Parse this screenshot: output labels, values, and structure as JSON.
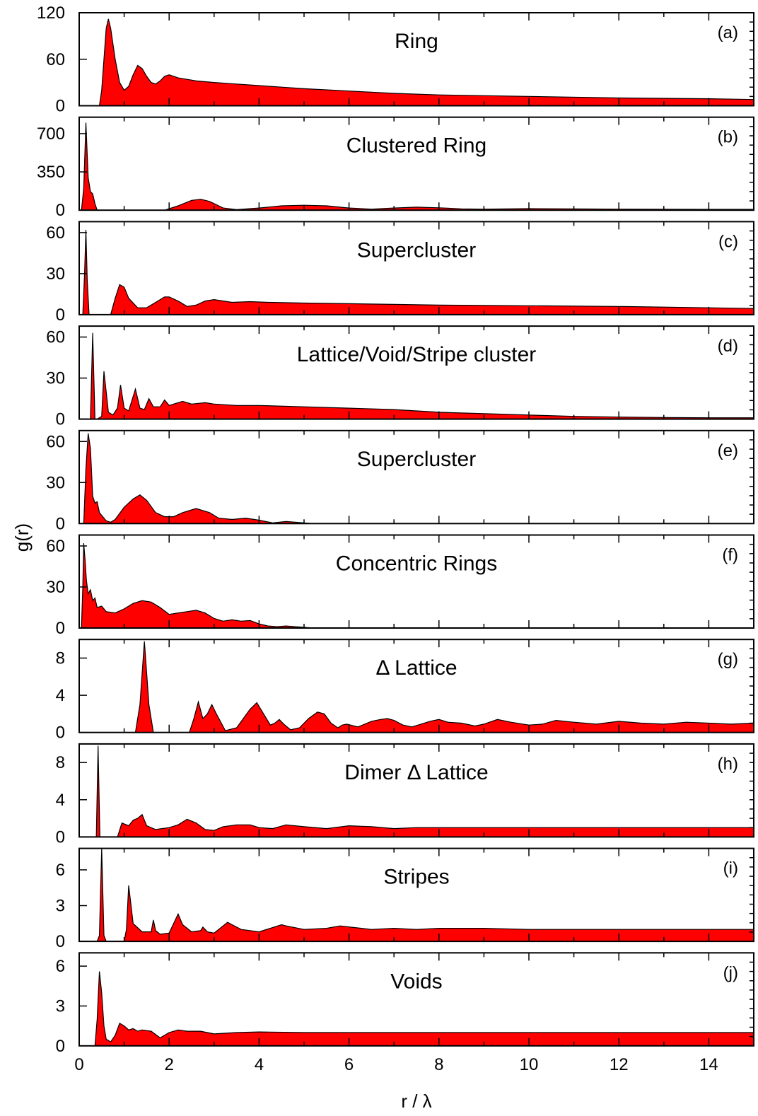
{
  "figure": {
    "xlabel": "r / λ",
    "ylabel": "g(r)",
    "fill_color": "#ff0000",
    "line_color": "#000000"
  },
  "chart_data": [
    {
      "type": "area",
      "tag": "(a)",
      "title": "Ring",
      "xlim": [
        0,
        15
      ],
      "ylim": [
        0,
        120
      ],
      "xticks": [
        0,
        2,
        4,
        6,
        8,
        10,
        12,
        14
      ],
      "yticks": [
        0,
        60,
        120
      ],
      "x": [
        0.45,
        0.5,
        0.55,
        0.6,
        0.65,
        0.7,
        0.8,
        0.9,
        1.0,
        1.1,
        1.2,
        1.3,
        1.4,
        1.5,
        1.6,
        1.7,
        1.8,
        1.9,
        2.0,
        2.2,
        2.4,
        2.6,
        2.8,
        3.0,
        3.5,
        4.0,
        4.5,
        5.0,
        6.0,
        7.0,
        8.0,
        10.0,
        12.0,
        14.0,
        15.0
      ],
      "y": [
        0,
        20,
        60,
        100,
        112,
        100,
        60,
        30,
        20,
        25,
        40,
        52,
        48,
        38,
        30,
        28,
        32,
        38,
        40,
        36,
        34,
        32,
        31,
        30,
        28,
        26,
        24,
        22,
        19,
        16,
        14,
        12,
        10,
        9,
        8
      ]
    },
    {
      "type": "area",
      "tag": "(b)",
      "title": "Clustered Ring",
      "xlim": [
        0,
        15
      ],
      "ylim": [
        0,
        850
      ],
      "xticks": [
        0,
        2,
        4,
        6,
        8,
        10,
        12,
        14
      ],
      "yticks": [
        0,
        350,
        700
      ],
      "x": [
        0.05,
        0.1,
        0.15,
        0.2,
        0.25,
        0.3,
        0.35,
        0.4,
        1.9,
        2.2,
        2.5,
        2.7,
        2.9,
        3.2,
        3.5,
        4.0,
        4.5,
        5.0,
        5.5,
        6.0,
        6.5,
        7.0,
        7.5,
        8.0,
        8.5,
        9.0,
        10.0,
        11.0,
        12.0,
        13.0,
        14.0,
        15.0
      ],
      "y": [
        0,
        200,
        800,
        300,
        170,
        150,
        60,
        0,
        0,
        40,
        90,
        100,
        80,
        20,
        5,
        20,
        40,
        45,
        40,
        20,
        10,
        20,
        28,
        22,
        12,
        10,
        14,
        12,
        10,
        9,
        8,
        8
      ]
    },
    {
      "type": "area",
      "tag": "(c)",
      "title": "Supercluster",
      "xlim": [
        0,
        15
      ],
      "ylim": [
        0,
        68
      ],
      "xticks": [
        0,
        2,
        4,
        6,
        8,
        10,
        12,
        14
      ],
      "yticks": [
        0,
        30,
        60
      ],
      "x": [
        0.08,
        0.12,
        0.15,
        0.18,
        0.22,
        0.7,
        0.8,
        0.9,
        1.0,
        1.1,
        1.3,
        1.5,
        1.7,
        1.9,
        2.0,
        2.2,
        2.4,
        2.6,
        2.8,
        3.0,
        3.4,
        3.8,
        4.2,
        5.0,
        6.0,
        7.0,
        8.0,
        10.0,
        12.0,
        14.0,
        15.0
      ],
      "y": [
        0,
        30,
        62,
        25,
        0,
        0,
        12,
        22,
        20,
        12,
        5,
        5,
        9,
        13,
        13,
        10,
        6,
        7,
        10,
        11,
        9,
        9.5,
        9,
        8.5,
        8,
        7.5,
        7,
        6.5,
        6,
        5,
        4.5
      ]
    },
    {
      "type": "area",
      "tag": "(d)",
      "title": "Lattice/Void/Stripe cluster",
      "xlim": [
        0,
        15
      ],
      "ylim": [
        0,
        68
      ],
      "xticks": [
        0,
        2,
        4,
        6,
        8,
        10,
        12,
        14
      ],
      "yticks": [
        0,
        30,
        60
      ],
      "x": [
        0.25,
        0.3,
        0.35,
        0.4,
        0.5,
        0.55,
        0.6,
        0.65,
        0.75,
        0.85,
        0.92,
        1.0,
        1.1,
        1.25,
        1.35,
        1.45,
        1.55,
        1.65,
        1.8,
        1.9,
        2.0,
        2.1,
        2.3,
        2.5,
        2.8,
        3.0,
        3.5,
        4.0,
        5.0,
        6.0,
        7.0,
        8.0,
        9.0,
        10.0,
        11.0,
        12.0,
        13.0,
        14.0,
        15.0
      ],
      "y": [
        0,
        63,
        0,
        0,
        2,
        35,
        20,
        5,
        3,
        8,
        25,
        8,
        6,
        22,
        8,
        7,
        15,
        9,
        9,
        14,
        10,
        11,
        13,
        11,
        12,
        11,
        10,
        10,
        9,
        8,
        7,
        5,
        4,
        3,
        2,
        1.5,
        1.2,
        1,
        1
      ]
    },
    {
      "type": "area",
      "tag": "(e)",
      "title": "Supercluster",
      "xlim": [
        0,
        15
      ],
      "ylim": [
        0,
        68
      ],
      "xticks": [
        0,
        2,
        4,
        6,
        8,
        10,
        12,
        14
      ],
      "yticks": [
        0,
        30,
        60
      ],
      "x": [
        0.1,
        0.15,
        0.2,
        0.25,
        0.3,
        0.35,
        0.4,
        0.45,
        0.5,
        0.6,
        0.7,
        0.8,
        1.0,
        1.2,
        1.35,
        1.5,
        1.7,
        1.9,
        2.1,
        2.3,
        2.6,
        2.9,
        3.1,
        3.4,
        3.7,
        4.0,
        4.3,
        4.6,
        5.0,
        5.2
      ],
      "y": [
        0,
        40,
        66,
        55,
        20,
        15,
        16,
        8,
        6,
        2,
        1,
        3,
        12,
        18,
        21,
        17,
        8,
        5,
        5,
        8,
        11,
        8,
        4,
        3,
        4,
        2.5,
        0.5,
        1.5,
        0.5,
        0
      ]
    },
    {
      "type": "area",
      "tag": "(f)",
      "title": "Concentric Rings",
      "xlim": [
        0,
        15
      ],
      "ylim": [
        0,
        68
      ],
      "xticks": [
        0,
        2,
        4,
        6,
        8,
        10,
        12,
        14
      ],
      "yticks": [
        0,
        30,
        60
      ],
      "x": [
        0.05,
        0.08,
        0.1,
        0.13,
        0.16,
        0.2,
        0.25,
        0.3,
        0.35,
        0.4,
        0.5,
        0.6,
        0.8,
        1.0,
        1.2,
        1.4,
        1.6,
        1.8,
        2.0,
        2.2,
        2.4,
        2.6,
        2.8,
        3.0,
        3.2,
        3.4,
        3.6,
        3.8,
        4.0,
        4.2,
        4.4,
        4.6,
        4.8,
        5.0,
        5.2
      ],
      "y": [
        0,
        30,
        62,
        50,
        35,
        25,
        28,
        20,
        22,
        15,
        16,
        12,
        11,
        14,
        18,
        20,
        19,
        15,
        10,
        11,
        12,
        13,
        11,
        7,
        5,
        6,
        5,
        5.5,
        3,
        1.5,
        1,
        1.5,
        1,
        0.5,
        0
      ]
    },
    {
      "type": "area",
      "tag": "(g)",
      "title": "Δ Lattice",
      "xlim": [
        0,
        15
      ],
      "ylim": [
        0,
        10
      ],
      "xticks": [
        0,
        2,
        4,
        6,
        8,
        10,
        12,
        14
      ],
      "yticks": [
        0,
        4,
        8
      ],
      "x": [
        1.25,
        1.35,
        1.45,
        1.55,
        1.65,
        2.45,
        2.55,
        2.65,
        2.75,
        2.85,
        2.95,
        3.05,
        3.25,
        3.5,
        3.65,
        3.8,
        3.95,
        4.1,
        4.25,
        4.35,
        4.45,
        4.55,
        4.7,
        4.9,
        5.1,
        5.3,
        5.45,
        5.6,
        5.75,
        5.85,
        5.95,
        6.2,
        6.5,
        6.7,
        6.85,
        7.0,
        7.2,
        7.4,
        7.6,
        7.8,
        8.0,
        8.2,
        8.5,
        8.8,
        9.0,
        9.3,
        9.6,
        10.0,
        10.3,
        10.6,
        11.0,
        11.5,
        12.0,
        12.5,
        13.0,
        13.5,
        14.0,
        14.5,
        15.0
      ],
      "y": [
        0,
        3,
        9.8,
        3,
        0,
        0,
        1.5,
        3.3,
        1.5,
        2,
        3,
        2,
        0.2,
        0.5,
        1.5,
        2.5,
        3.2,
        2,
        0.8,
        1,
        1.4,
        0.9,
        0.3,
        0.5,
        1.5,
        2.2,
        2,
        1,
        0.5,
        0.8,
        0.9,
        0.6,
        1.2,
        1.4,
        1.5,
        1.3,
        0.8,
        0.6,
        0.9,
        1.2,
        1.4,
        1.1,
        1,
        0.7,
        0.9,
        1.4,
        1.1,
        0.8,
        0.9,
        1.3,
        1.1,
        0.9,
        1.2,
        1,
        0.9,
        1.1,
        1,
        0.9,
        1
      ]
    },
    {
      "type": "area",
      "tag": "(h)",
      "title": "Dimer Δ Lattice",
      "xlim": [
        0,
        15
      ],
      "ylim": [
        0,
        10
      ],
      "xticks": [
        0,
        2,
        4,
        6,
        8,
        10,
        12,
        14
      ],
      "yticks": [
        0,
        4,
        8
      ],
      "x": [
        0.38,
        0.42,
        0.46,
        0.85,
        0.95,
        1.1,
        1.2,
        1.3,
        1.4,
        1.5,
        1.7,
        2.0,
        2.2,
        2.4,
        2.6,
        2.8,
        3.0,
        3.2,
        3.5,
        3.8,
        4.0,
        4.3,
        4.6,
        5.0,
        5.5,
        6.0,
        6.5,
        7.0,
        7.5,
        8.0,
        9.0,
        10.0,
        11.0,
        12.0,
        13.0,
        14.0,
        15.0
      ],
      "y": [
        0,
        9.8,
        0,
        0,
        1.5,
        1.2,
        1.8,
        2,
        2.4,
        1.2,
        0.8,
        1,
        1.3,
        1.9,
        1.5,
        0.8,
        0.7,
        1.1,
        1.3,
        1.3,
        1,
        0.9,
        1.3,
        1.1,
        0.9,
        1.2,
        1.1,
        0.9,
        1,
        1,
        1,
        1,
        1,
        1,
        1,
        1,
        1
      ]
    },
    {
      "type": "area",
      "tag": "(i)",
      "title": "Stripes",
      "xlim": [
        0,
        15
      ],
      "ylim": [
        0,
        7.8
      ],
      "xticks": [
        0,
        2,
        4,
        6,
        8,
        10,
        12,
        14
      ],
      "yticks": [
        0,
        3,
        6
      ],
      "x": [
        0.4,
        0.45,
        0.5,
        0.55,
        0.6,
        1.0,
        1.05,
        1.1,
        1.2,
        1.4,
        1.6,
        1.65,
        1.7,
        1.8,
        2.0,
        2.2,
        2.3,
        2.5,
        2.7,
        2.75,
        2.85,
        3.0,
        3.3,
        3.4,
        3.6,
        4.0,
        4.5,
        4.6,
        5.0,
        5.5,
        5.8,
        6.5,
        7.0,
        7.5,
        8.0,
        9.0,
        10.0,
        11.0,
        12.0,
        13.0,
        14.0,
        15.0
      ],
      "y": [
        0,
        0.5,
        8,
        0.5,
        0,
        0,
        1,
        4.7,
        1.5,
        0.8,
        0.8,
        1.8,
        0.9,
        0.6,
        0.7,
        2.3,
        1.4,
        0.8,
        0.9,
        1.2,
        0.8,
        0.7,
        1.6,
        1.4,
        1,
        0.8,
        1.4,
        1.3,
        1,
        1.1,
        1.3,
        1,
        1.1,
        1,
        1.1,
        1.1,
        1,
        1,
        1,
        1,
        1,
        1
      ]
    },
    {
      "type": "area",
      "tag": "(j)",
      "title": "Voids",
      "xlim": [
        0,
        15
      ],
      "ylim": [
        0,
        7
      ],
      "xticks": [
        0,
        2,
        4,
        6,
        8,
        10,
        12,
        14
      ],
      "yticks": [
        0,
        3,
        6
      ],
      "x": [
        0.35,
        0.4,
        0.45,
        0.5,
        0.55,
        0.6,
        0.7,
        0.8,
        0.9,
        1.0,
        1.1,
        1.2,
        1.3,
        1.4,
        1.6,
        1.8,
        2.0,
        2.2,
        2.4,
        2.7,
        3.0,
        3.5,
        4.0,
        5.0,
        6.0,
        8.0,
        10.0,
        12.0,
        14.0,
        15.0
      ],
      "y": [
        0,
        2,
        5.6,
        4,
        1.5,
        0.5,
        0.3,
        0.8,
        1.7,
        1.5,
        1.2,
        1.3,
        1.1,
        1.2,
        1.1,
        0.6,
        1,
        1.2,
        1.1,
        1.1,
        0.9,
        1,
        1.05,
        1,
        1,
        1,
        1,
        1,
        1,
        1
      ]
    }
  ]
}
